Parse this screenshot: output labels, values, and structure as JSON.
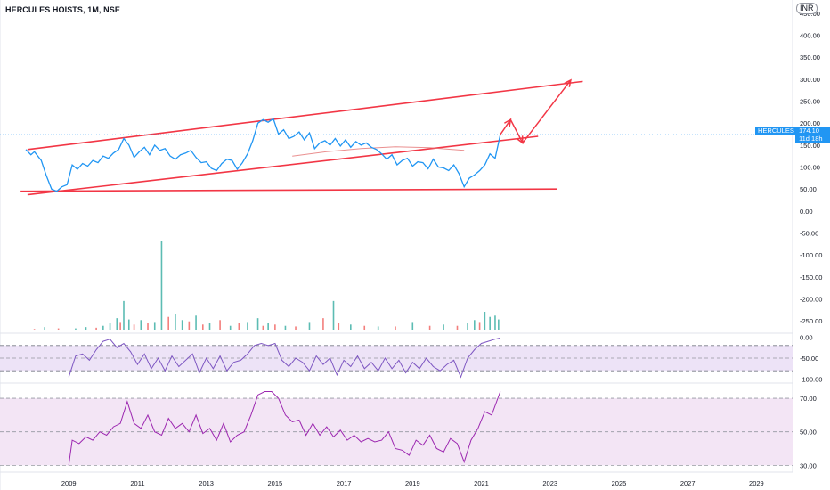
{
  "header": {
    "title": "HERCULES HOISTS, 1M, NSE",
    "currency": "INR"
  },
  "price_tag": {
    "symbol": "HERCULES",
    "last_price": "174.10",
    "countdown": "11d 18h"
  },
  "colors": {
    "price_line": "#2196f3",
    "annotation": "#f23645",
    "volume_up": "#26a69a",
    "volume_down": "#ef5350",
    "rsi_line": "#7e57c2",
    "rsi_band": "#ede3f7",
    "lower_line": "#9c27b0",
    "lower_band": "#f3e5f5",
    "ma_line": "#e57373",
    "axis_text": "#131722"
  },
  "chart_data": [
    {
      "type": "line",
      "title": "HERCULES HOISTS, 1M, NSE",
      "x_tick_labels": [
        "2009",
        "2011",
        "2013",
        "2015",
        "2017",
        "2019",
        "2021",
        "2023",
        "2025",
        "2027",
        "2029"
      ],
      "xlim": [
        2007.0,
        2030.0
      ],
      "y_tick_labels": [
        "450.00",
        "400.00",
        "350.00",
        "300.00",
        "250.00",
        "200.00",
        "150.00",
        "100.00",
        "50.00",
        "0.00",
        "-50.00",
        "-100.00",
        "-150.00",
        "-200.00",
        "-250.00"
      ],
      "ylim": [
        -270,
        460
      ],
      "series": [
        {
          "x": [
            2007.75,
            2007.9,
            2008.0,
            2008.2,
            2008.35,
            2008.5,
            2008.65,
            2008.8,
            2008.95,
            2009.1,
            2009.25,
            2009.4,
            2009.55,
            2009.7,
            2009.85,
            2010.0,
            2010.15,
            2010.3,
            2010.45,
            2010.6,
            2010.75,
            2010.9,
            2011.05,
            2011.2,
            2011.35,
            2011.5,
            2011.65,
            2011.8,
            2011.95,
            2012.1,
            2012.25,
            2012.4,
            2012.55,
            2012.7,
            2012.85,
            2013.0,
            2013.15,
            2013.3,
            2013.45,
            2013.6,
            2013.75,
            2013.9,
            2014.05,
            2014.2,
            2014.35,
            2014.5,
            2014.65,
            2014.8,
            2014.95,
            2015.1,
            2015.25,
            2015.4,
            2015.55,
            2015.7,
            2015.85,
            2016.0,
            2016.15,
            2016.3,
            2016.45,
            2016.6,
            2016.75,
            2016.9,
            2017.05,
            2017.2,
            2017.35,
            2017.5,
            2017.65,
            2017.8,
            2017.95,
            2018.1,
            2018.25,
            2018.4,
            2018.55,
            2018.7,
            2018.85,
            2019.0,
            2019.15,
            2019.3,
            2019.45,
            2019.6,
            2019.75,
            2019.9,
            2020.05,
            2020.2,
            2020.35,
            2020.5,
            2020.65,
            2020.8,
            2020.95,
            2021.1,
            2021.25,
            2021.4,
            2021.55
          ],
          "y": [
            140,
            128,
            135,
            115,
            80,
            50,
            45,
            55,
            60,
            105,
            95,
            108,
            102,
            115,
            110,
            125,
            120,
            132,
            140,
            165,
            150,
            122,
            135,
            145,
            128,
            150,
            138,
            142,
            125,
            118,
            128,
            132,
            138,
            122,
            110,
            112,
            97,
            92,
            108,
            118,
            115,
            95,
            110,
            130,
            160,
            200,
            208,
            202,
            210,
            175,
            185,
            165,
            170,
            180,
            162,
            178,
            142,
            155,
            160,
            150,
            165,
            148,
            162,
            145,
            158,
            150,
            155,
            145,
            140,
            130,
            118,
            128,
            105,
            115,
            120,
            102,
            112,
            110,
            96,
            118,
            100,
            98,
            92,
            105,
            85,
            55,
            75,
            82,
            92,
            105,
            130,
            120,
            174
          ],
          "name": ""
        },
        {
          "x": [
            2015.5,
            2016.5,
            2017.5,
            2018.5,
            2019.5,
            2020.5
          ],
          "y": [
            125,
            135,
            142,
            146,
            144,
            138
          ],
          "name": ""
        }
      ],
      "annotations": {
        "upper_channel": {
          "x": [
            2007.8,
            2023.95
          ],
          "y": [
            140,
            295
          ]
        },
        "lower_channel": {
          "x": [
            2007.8,
            2022.65
          ],
          "y": [
            37,
            170
          ]
        },
        "base_line": {
          "x": [
            2007.6,
            2023.2
          ],
          "y": [
            45,
            50
          ]
        },
        "arrow_path": {
          "x": [
            2021.55,
            2021.85,
            2022.2,
            2023.6
          ],
          "y": [
            174,
            208,
            155,
            298
          ]
        }
      },
      "grid": true
    },
    {
      "type": "bar",
      "title": "",
      "x": [
        2008.0,
        2008.3,
        2008.7,
        2009.2,
        2009.5,
        2009.8,
        2010.0,
        2010.2,
        2010.4,
        2010.5,
        2010.6,
        2010.75,
        2010.9,
        2011.1,
        2011.3,
        2011.5,
        2011.7,
        2011.9,
        2012.1,
        2012.3,
        2012.5,
        2012.7,
        2012.9,
        2013.1,
        2013.4,
        2013.7,
        2013.95,
        2014.2,
        2014.5,
        2014.65,
        2014.8,
        2015.0,
        2015.3,
        2015.6,
        2016.0,
        2016.4,
        2016.7,
        2016.85,
        2017.2,
        2017.6,
        2018.0,
        2018.5,
        2019.0,
        2019.5,
        2019.9,
        2020.3,
        2020.6,
        2020.8,
        2020.95,
        2021.1,
        2021.25,
        2021.4,
        2021.5
      ],
      "values": [
        1,
        4,
        2,
        2,
        4,
        3,
        6,
        10,
        18,
        12,
        45,
        16,
        8,
        15,
        10,
        12,
        140,
        20,
        25,
        15,
        13,
        22,
        8,
        10,
        15,
        6,
        10,
        12,
        18,
        6,
        10,
        8,
        6,
        5,
        12,
        18,
        45,
        10,
        8,
        6,
        5,
        5,
        12,
        6,
        8,
        6,
        10,
        15,
        12,
        28,
        20,
        22,
        16
      ],
      "up": [
        false,
        true,
        false,
        true,
        true,
        false,
        true,
        true,
        true,
        false,
        true,
        true,
        false,
        true,
        false,
        true,
        true,
        false,
        true,
        true,
        false,
        true,
        false,
        true,
        false,
        true,
        false,
        true,
        true,
        false,
        true,
        false,
        true,
        false,
        true,
        false,
        true,
        false,
        true,
        false,
        true,
        false,
        true,
        false,
        true,
        false,
        true,
        true,
        false,
        true,
        true,
        true,
        true
      ]
    },
    {
      "type": "line",
      "title": "",
      "y_tick_labels": [
        "0.00",
        "-50.00",
        "-100.00"
      ],
      "ylim": [
        -105,
        5
      ],
      "bands": [
        -20,
        -50,
        -80
      ],
      "series": [
        {
          "x": [
            2009.0,
            2009.2,
            2009.4,
            2009.6,
            2009.8,
            2010.0,
            2010.2,
            2010.4,
            2010.6,
            2010.8,
            2011.0,
            2011.2,
            2011.4,
            2011.6,
            2011.8,
            2012.0,
            2012.2,
            2012.4,
            2012.6,
            2012.8,
            2013.0,
            2013.2,
            2013.4,
            2013.6,
            2013.8,
            2014.0,
            2014.2,
            2014.4,
            2014.6,
            2014.8,
            2015.0,
            2015.2,
            2015.4,
            2015.6,
            2015.8,
            2016.0,
            2016.2,
            2016.4,
            2016.6,
            2016.8,
            2017.0,
            2017.2,
            2017.4,
            2017.6,
            2017.8,
            2018.0,
            2018.2,
            2018.4,
            2018.6,
            2018.8,
            2019.0,
            2019.2,
            2019.4,
            2019.6,
            2019.8,
            2020.0,
            2020.2,
            2020.4,
            2020.6,
            2020.8,
            2021.0,
            2021.2,
            2021.4,
            2021.55
          ],
          "y": [
            -95,
            -45,
            -40,
            -55,
            -30,
            -10,
            -5,
            -25,
            -15,
            -35,
            -65,
            -40,
            -75,
            -50,
            -80,
            -45,
            -70,
            -55,
            -40,
            -85,
            -50,
            -75,
            -45,
            -80,
            -60,
            -55,
            -40,
            -20,
            -15,
            -20,
            -15,
            -55,
            -70,
            -50,
            -60,
            -80,
            -45,
            -65,
            -50,
            -90,
            -55,
            -70,
            -45,
            -75,
            -60,
            -80,
            -50,
            -75,
            -55,
            -85,
            -60,
            -75,
            -50,
            -70,
            -80,
            -65,
            -55,
            -95,
            -50,
            -30,
            -15,
            -10,
            -5,
            -2
          ],
          "name": ""
        }
      ]
    },
    {
      "type": "area",
      "title": "",
      "y_tick_labels": [
        "70.00",
        "50.00",
        "30.00"
      ],
      "ylim": [
        27,
        78
      ],
      "bands": [
        70,
        50,
        30
      ],
      "series": [
        {
          "x": [
            2009.0,
            2009.1,
            2009.3,
            2009.5,
            2009.7,
            2009.9,
            2010.1,
            2010.3,
            2010.5,
            2010.7,
            2010.9,
            2011.1,
            2011.3,
            2011.5,
            2011.7,
            2011.9,
            2012.1,
            2012.3,
            2012.5,
            2012.7,
            2012.9,
            2013.1,
            2013.3,
            2013.5,
            2013.7,
            2013.9,
            2014.1,
            2014.3,
            2014.5,
            2014.7,
            2014.9,
            2015.1,
            2015.3,
            2015.5,
            2015.7,
            2015.9,
            2016.1,
            2016.3,
            2016.5,
            2016.7,
            2016.9,
            2017.1,
            2017.3,
            2017.5,
            2017.7,
            2017.9,
            2018.1,
            2018.3,
            2018.5,
            2018.7,
            2018.9,
            2019.1,
            2019.3,
            2019.5,
            2019.7,
            2019.9,
            2020.1,
            2020.3,
            2020.5,
            2020.7,
            2020.9,
            2021.1,
            2021.3,
            2021.55
          ],
          "y": [
            30,
            45,
            43,
            47,
            45,
            50,
            48,
            53,
            55,
            68,
            55,
            52,
            60,
            50,
            48,
            58,
            52,
            55,
            50,
            60,
            49,
            52,
            45,
            55,
            44,
            48,
            50,
            60,
            72,
            74,
            74,
            70,
            60,
            56,
            57,
            48,
            55,
            48,
            53,
            47,
            51,
            45,
            48,
            44,
            46,
            44,
            45,
            50,
            40,
            39,
            36,
            45,
            42,
            48,
            40,
            38,
            46,
            43,
            32,
            45,
            52,
            62,
            60,
            74
          ],
          "name": ""
        }
      ]
    }
  ]
}
